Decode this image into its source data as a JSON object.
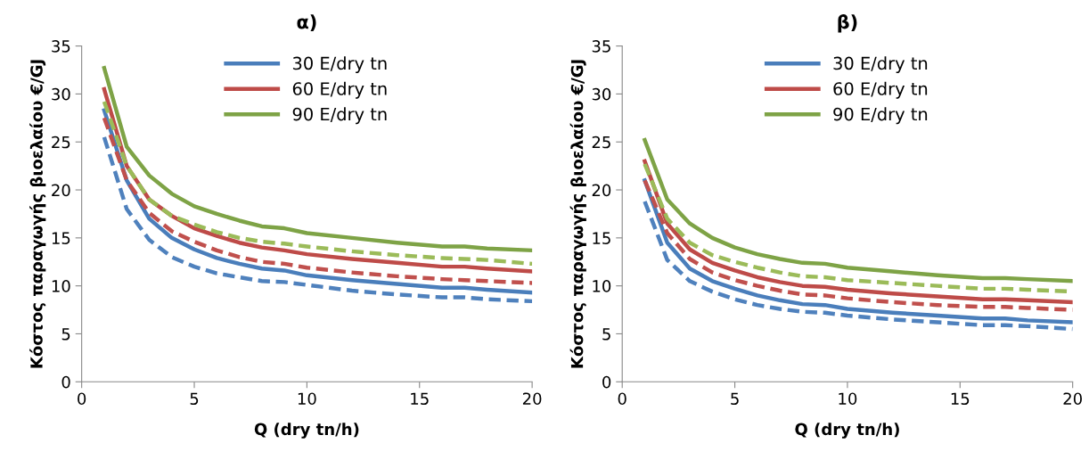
{
  "chart_data": [
    {
      "type": "line",
      "title": "α)",
      "xlabel": "Q (dry tn/h)",
      "ylabel": "Κόστος παραγωγής βιοελαίου €/GJ",
      "x": [
        1,
        2,
        3,
        4,
        5,
        6,
        7,
        8,
        9,
        10,
        12,
        14,
        16,
        17,
        18,
        20
      ],
      "xlim": [
        0,
        20
      ],
      "xticks": [
        0,
        5,
        10,
        15,
        20
      ],
      "ylim": [
        0,
        35
      ],
      "yticks": [
        0,
        5,
        10,
        15,
        20,
        25,
        30,
        35
      ],
      "grid": false,
      "legend": "top",
      "line_style": "solid",
      "series": [
        {
          "name": "30 E/dry tn",
          "color": "#4a7ebb",
          "values": [
            28.3,
            21,
            17,
            15.0,
            13.8,
            12.9,
            12.3,
            11.8,
            11.6,
            11.1,
            10.6,
            10.2,
            9.8,
            9.8,
            9.6,
            9.3
          ]
        },
        {
          "name": "60 E/dry tn",
          "color": "#be4b48",
          "values": [
            30.5,
            22.5,
            19,
            17.3,
            16.0,
            15.2,
            14.5,
            14.0,
            13.7,
            13.3,
            12.8,
            12.4,
            12.0,
            12.0,
            11.8,
            11.5
          ]
        },
        {
          "name": "90 E/dry tn",
          "color": "#7ea346",
          "values": [
            32.7,
            24.5,
            21.5,
            19.6,
            18.3,
            17.5,
            16.8,
            16.2,
            16.0,
            15.5,
            15.0,
            14.5,
            14.1,
            14.1,
            13.9,
            13.7
          ]
        },
        {
          "color": "#4f81bd",
          "line_style": "dashed",
          "values": [
            25.5,
            18.0,
            14.8,
            13.0,
            12.0,
            11.3,
            10.9,
            10.5,
            10.4,
            10.1,
            9.5,
            9.1,
            8.8,
            8.8,
            8.6,
            8.4
          ]
        },
        {
          "color": "#c0504d",
          "line_style": "dashed",
          "values": [
            27.5,
            21,
            17.6,
            15.7,
            14.6,
            13.7,
            13.0,
            12.5,
            12.3,
            11.9,
            11.4,
            11.0,
            10.7,
            10.6,
            10.5,
            10.3
          ]
        },
        {
          "color": "#9bbb59",
          "line_style": "dashed",
          "values": [
            29.2,
            22.5,
            19,
            17.3,
            16.4,
            15.6,
            15.0,
            14.6,
            14.4,
            14.1,
            13.6,
            13.2,
            12.9,
            12.8,
            12.7,
            12.3
          ]
        }
      ]
    },
    {
      "type": "line",
      "title": "β)",
      "xlabel": "Q (dry tn/h)",
      "ylabel": "Κόστος παραγωγής βιοελαίου €/GJ",
      "x": [
        1,
        2,
        3,
        4,
        5,
        6,
        7,
        8,
        9,
        10,
        12,
        14,
        16,
        17,
        18,
        20
      ],
      "xlim": [
        0,
        20
      ],
      "xticks": [
        0,
        5,
        10,
        15,
        20
      ],
      "ylim": [
        0,
        35
      ],
      "yticks": [
        0,
        5,
        10,
        15,
        20,
        25,
        30,
        35
      ],
      "grid": false,
      "legend": "top",
      "line_style": "solid",
      "series": [
        {
          "name": "30 E/dry tn",
          "color": "#4a7ebb",
          "values": [
            21,
            14.5,
            11.8,
            10.5,
            9.7,
            9.0,
            8.5,
            8.1,
            8.0,
            7.6,
            7.2,
            6.9,
            6.6,
            6.6,
            6.4,
            6.2
          ]
        },
        {
          "name": "60 E/dry tn",
          "color": "#be4b48",
          "values": [
            23,
            16.5,
            13.8,
            12.4,
            11.6,
            10.9,
            10.4,
            10.0,
            9.9,
            9.6,
            9.2,
            8.9,
            8.6,
            8.6,
            8.5,
            8.3
          ]
        },
        {
          "name": "90 E/dry tn",
          "color": "#7ea346",
          "values": [
            25.2,
            19,
            16.5,
            15,
            14,
            13.3,
            12.8,
            12.4,
            12.3,
            11.9,
            11.5,
            11.1,
            10.8,
            10.8,
            10.7,
            10.5
          ]
        },
        {
          "color": "#4f81bd",
          "line_style": "dashed",
          "values": [
            18.8,
            12.7,
            10.5,
            9.4,
            8.6,
            8.0,
            7.6,
            7.3,
            7.2,
            6.9,
            6.5,
            6.2,
            5.9,
            5.9,
            5.8,
            5.5
          ]
        },
        {
          "color": "#c0504d",
          "line_style": "dashed",
          "values": [
            21,
            15.5,
            12.8,
            11.4,
            10.6,
            10.0,
            9.5,
            9.1,
            9.0,
            8.7,
            8.3,
            8.0,
            7.8,
            7.8,
            7.7,
            7.5
          ]
        },
        {
          "color": "#9bbb59",
          "line_style": "dashed",
          "values": [
            22.7,
            17,
            14.5,
            13.2,
            12.5,
            11.9,
            11.4,
            11.0,
            10.9,
            10.6,
            10.3,
            10.0,
            9.7,
            9.7,
            9.6,
            9.4
          ]
        }
      ]
    }
  ]
}
